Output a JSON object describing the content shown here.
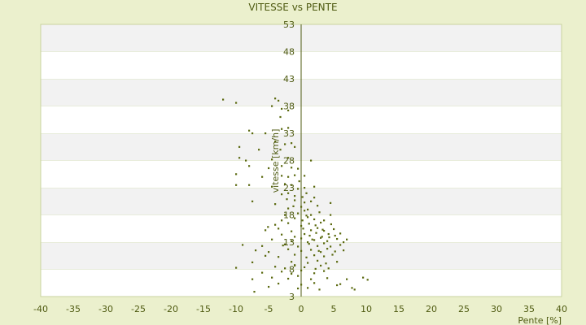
{
  "chart_data": {
    "type": "scatter",
    "title": "VITESSE vs PENTE",
    "xlabel": "Pente [%]",
    "ylabel": "vitesse [km/h]",
    "xlim": [
      -40,
      40
    ],
    "ylim": [
      3,
      53
    ],
    "xticks": [
      "-40",
      "-35",
      "-30",
      "-25",
      "-20",
      "-15",
      "-10",
      "-5",
      "0",
      "5",
      "10",
      "15",
      "20",
      "25",
      "30",
      "35",
      "40"
    ],
    "yticks": [
      "3",
      "8",
      "13",
      "18",
      "23",
      "28",
      "33",
      "38",
      "43",
      "48",
      "53"
    ],
    "grid": "horizontal alternating bands",
    "colors": {
      "background": "#ebf0cd",
      "band_light": "#ffffff",
      "band_dark": "#f2f2f2",
      "marker": "#5b6a10",
      "axis": "#4f5b12"
    },
    "points": [
      [
        -12,
        39.2
      ],
      [
        -10,
        38.6
      ],
      [
        -4,
        39.4
      ],
      [
        -3.5,
        39
      ],
      [
        -4.5,
        38
      ],
      [
        -3,
        37.5
      ],
      [
        -2,
        37.2
      ],
      [
        -3.2,
        36
      ],
      [
        -8,
        33.5
      ],
      [
        -7.5,
        33
      ],
      [
        -5.5,
        33
      ],
      [
        -3,
        33.8
      ],
      [
        -2,
        34
      ],
      [
        -4,
        31.5
      ],
      [
        -2.5,
        31
      ],
      [
        -1.5,
        31.2
      ],
      [
        -9.5,
        30.5
      ],
      [
        -6.5,
        30
      ],
      [
        -3.2,
        30
      ],
      [
        -1,
        30.5
      ],
      [
        -9.5,
        28.5
      ],
      [
        -8.5,
        28
      ],
      [
        -4.5,
        28.2
      ],
      [
        -2,
        28.5
      ],
      [
        1.5,
        28
      ],
      [
        -8,
        27
      ],
      [
        -5,
        26.6
      ],
      [
        -3,
        27
      ],
      [
        -0.5,
        26.5
      ],
      [
        -1.5,
        26.7
      ],
      [
        -10,
        25.5
      ],
      [
        -6,
        25
      ],
      [
        -3,
        25.2
      ],
      [
        -2,
        25
      ],
      [
        -1,
        25.3
      ],
      [
        0.5,
        25.2
      ],
      [
        -10,
        23.5
      ],
      [
        -8,
        23.5
      ],
      [
        -4.5,
        23.2
      ],
      [
        -2.5,
        23.7
      ],
      [
        -1.5,
        23.5
      ],
      [
        -0.5,
        22.8
      ],
      [
        0.5,
        23
      ],
      [
        2,
        23.2
      ],
      [
        -3,
        21.8
      ],
      [
        -2,
        22
      ],
      [
        -1,
        21.5
      ],
      [
        0.8,
        22
      ],
      [
        -7.5,
        20.5
      ],
      [
        -4,
        20
      ],
      [
        -1,
        20.7
      ],
      [
        0.5,
        20.3
      ],
      [
        1.5,
        20.5
      ],
      [
        2,
        21.2
      ],
      [
        -2,
        19.2
      ],
      [
        0,
        19.5
      ],
      [
        1,
        19
      ],
      [
        2.5,
        19.7
      ],
      [
        4.5,
        20.2
      ],
      [
        -2.5,
        18
      ],
      [
        -0.5,
        18.3
      ],
      [
        0.5,
        18.8
      ],
      [
        1.5,
        18
      ],
      [
        2.8,
        18.5
      ],
      [
        -3,
        17
      ],
      [
        -1,
        17.4
      ],
      [
        0.2,
        17
      ],
      [
        1,
        17.6
      ],
      [
        2,
        17.2
      ],
      [
        3.5,
        17
      ],
      [
        4.5,
        18
      ],
      [
        -4,
        16.2
      ],
      [
        -2,
        16.5
      ],
      [
        0,
        16
      ],
      [
        1.2,
        16.4
      ],
      [
        2.2,
        16.1
      ],
      [
        3,
        16.6
      ],
      [
        4.6,
        16.3
      ],
      [
        -5.5,
        15.2
      ],
      [
        -3.5,
        15.5
      ],
      [
        -1.5,
        15
      ],
      [
        0.3,
        15.5
      ],
      [
        1.5,
        15.2
      ],
      [
        2.5,
        15.6
      ],
      [
        3.5,
        15.1
      ],
      [
        5,
        15.4
      ],
      [
        -3,
        14.4
      ],
      [
        -1,
        14
      ],
      [
        0.5,
        14.5
      ],
      [
        1.3,
        14.2
      ],
      [
        2.3,
        14.7
      ],
      [
        3.2,
        14
      ],
      [
        4.2,
        14.5
      ],
      [
        5.2,
        14.2
      ],
      [
        6,
        14.6
      ],
      [
        -4.5,
        13.5
      ],
      [
        -1.5,
        13.2
      ],
      [
        0,
        13.7
      ],
      [
        1,
        13
      ],
      [
        2,
        13.4
      ],
      [
        3,
        13.8
      ],
      [
        4,
        13.2
      ],
      [
        5.5,
        13.6
      ],
      [
        6.5,
        13
      ],
      [
        7,
        13.5
      ],
      [
        -9,
        12.5
      ],
      [
        -6,
        12.3
      ],
      [
        -2.5,
        12.6
      ],
      [
        -0.5,
        12.2
      ],
      [
        1.2,
        12.7
      ],
      [
        2.5,
        12.3
      ],
      [
        3.5,
        12.8
      ],
      [
        4.5,
        12.2
      ],
      [
        6,
        12.5
      ],
      [
        -7,
        11.5
      ],
      [
        -5,
        11.2
      ],
      [
        -2,
        11.7
      ],
      [
        0,
        11.4
      ],
      [
        1.5,
        11.6
      ],
      [
        3,
        11.2
      ],
      [
        4,
        11.8
      ],
      [
        5.2,
        11.3
      ],
      [
        6.5,
        11.5
      ],
      [
        -5.5,
        10.5
      ],
      [
        -3.5,
        10.3
      ],
      [
        -1,
        10.7
      ],
      [
        0.8,
        10.2
      ],
      [
        2,
        10.6
      ],
      [
        3.5,
        10.4
      ],
      [
        4.8,
        10.7
      ],
      [
        -7.5,
        9.3
      ],
      [
        -1.5,
        9.4
      ],
      [
        1,
        9.2
      ],
      [
        2.5,
        9.6
      ],
      [
        3.8,
        9.1
      ],
      [
        5.5,
        9.4
      ],
      [
        -10,
        8.3
      ],
      [
        -4,
        8.5
      ],
      [
        -2.5,
        8.2
      ],
      [
        -1,
        8.8
      ],
      [
        0.5,
        8.4
      ],
      [
        2.2,
        8.1
      ],
      [
        3,
        8.7
      ],
      [
        4.2,
        8.2
      ],
      [
        -6,
        7.4
      ],
      [
        -3,
        7.6
      ],
      [
        -1.5,
        7.2
      ],
      [
        0,
        7.8
      ],
      [
        2,
        7.3
      ],
      [
        3.5,
        7.7
      ],
      [
        -7.5,
        6.2
      ],
      [
        -4.5,
        6.5
      ],
      [
        -2,
        6.3
      ],
      [
        -0.5,
        6.8
      ],
      [
        1.5,
        6.2
      ],
      [
        4,
        6.4
      ],
      [
        7,
        6.2
      ],
      [
        9.5,
        6.5
      ],
      [
        10.2,
        6.1
      ],
      [
        -3.5,
        5.4
      ],
      [
        0,
        5.2
      ],
      [
        2,
        5.5
      ],
      [
        5.5,
        5.1
      ],
      [
        6,
        5.3
      ],
      [
        -5,
        4.8
      ],
      [
        -0.5,
        4.5
      ],
      [
        1,
        4.6
      ],
      [
        2.8,
        4.3
      ],
      [
        7.8,
        4.6
      ],
      [
        8.2,
        4.3
      ],
      [
        -7.2,
        3.9
      ],
      [
        -1,
        8.7
      ],
      [
        -2.8,
        12.4
      ],
      [
        -5.1,
        15.8
      ],
      [
        0.8,
        17.9
      ],
      [
        1.7,
        13.5
      ],
      [
        2.7,
        11.4
      ],
      [
        3.3,
        15.3
      ],
      [
        4.3,
        13.9
      ],
      [
        -1.2,
        19.6
      ],
      [
        0.2,
        21.3
      ],
      [
        -0.3,
        24.2
      ],
      [
        -2.2,
        20.9
      ]
    ]
  }
}
